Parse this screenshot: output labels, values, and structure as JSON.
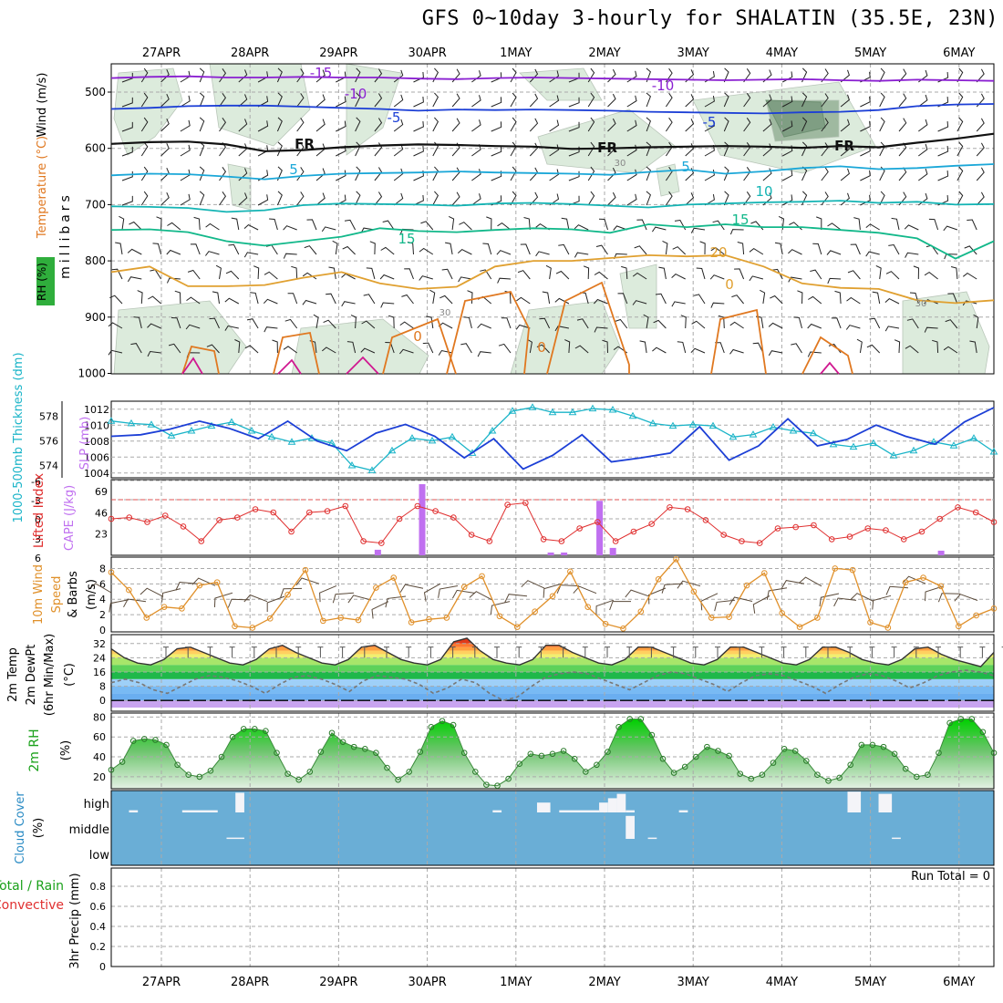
{
  "title": "GFS 0~10day 3-hourly for SHALATIN (35.5E, 23N)",
  "dates": [
    "27APR",
    "28APR",
    "29APR",
    "30APR",
    "1MAY",
    "2MAY",
    "3MAY",
    "4MAY",
    "5MAY",
    "6MAY"
  ],
  "colors": {
    "purple": "#8a1fd1",
    "blue": "#1c3fd6",
    "cyan": "#1aa7d8",
    "teal": "#14b4b4",
    "green": "#12b88a",
    "gold": "#e0a030",
    "orange": "#e07820",
    "magenta": "#d01890",
    "slp": "#1c3fd6",
    "thick": "#1ab4c8",
    "li": "#e03030",
    "cape": "#c070f0",
    "wind10": "#e0902a",
    "cloud": "#6aaed6"
  },
  "chart_data": [
    {
      "type": "line",
      "panel": "upper-air",
      "ylabel_parts": [
        "RH (%)",
        "Temperature (°C)",
        "Wind (m/s)"
      ],
      "ylabel2": "millibars",
      "y_ticks": [
        500,
        600,
        700,
        800,
        900,
        1000
      ],
      "ylim": [
        1000,
        450
      ],
      "contour_labels": [
        {
          "text": "-15",
          "series": "purple"
        },
        {
          "text": "-10",
          "series": "purple"
        },
        {
          "text": "-10",
          "series": "purple"
        },
        {
          "text": "-5",
          "series": "blue"
        },
        {
          "text": "-5",
          "series": "blue"
        },
        {
          "text": "FR",
          "series": "black"
        },
        {
          "text": "FR",
          "series": "black"
        },
        {
          "text": "FR",
          "series": "black"
        },
        {
          "text": "5",
          "series": "cyan"
        },
        {
          "text": "5",
          "series": "cyan"
        },
        {
          "text": "10",
          "series": "teal"
        },
        {
          "text": "15",
          "series": "green"
        },
        {
          "text": "15",
          "series": "green"
        },
        {
          "text": "20",
          "series": "gold"
        },
        {
          "text": "0",
          "series": "gold"
        },
        {
          "text": "0",
          "series": "orange"
        },
        {
          "text": "0",
          "series": "orange"
        },
        {
          "text": "30",
          "series": "gray"
        },
        {
          "text": "30",
          "series": "gray"
        },
        {
          "text": "30",
          "series": "gray"
        }
      ],
      "series": [
        {
          "color": "purple",
          "values": [
            475,
            473,
            472,
            474,
            474,
            473,
            474,
            474,
            476,
            477,
            475,
            474,
            475,
            476,
            477,
            478,
            479,
            478,
            477,
            479,
            480,
            478,
            479,
            480
          ]
        },
        {
          "color": "blue",
          "values": [
            530,
            528,
            525,
            524,
            524,
            526,
            528,
            530,
            533,
            531,
            532,
            531,
            532,
            533,
            535,
            536,
            537,
            538,
            536,
            535,
            532,
            525,
            522,
            521
          ]
        },
        {
          "color": "black",
          "values": [
            592,
            589,
            588,
            593,
            605,
            603,
            598,
            595,
            593,
            594,
            596,
            597,
            601,
            600,
            598,
            597,
            596,
            597,
            599,
            596,
            598,
            590,
            583,
            574
          ]
        },
        {
          "color": "cyan",
          "values": [
            648,
            645,
            646,
            650,
            655,
            649,
            645,
            644,
            643,
            641,
            643,
            644,
            645,
            647,
            642,
            638,
            645,
            641,
            635,
            632,
            637,
            635,
            631,
            628
          ]
        },
        {
          "color": "teal",
          "values": [
            703,
            704,
            706,
            713,
            710,
            701,
            698,
            699,
            700,
            702,
            698,
            697,
            699,
            702,
            705,
            700,
            698,
            696,
            695,
            693,
            697,
            695,
            700,
            699
          ]
        },
        {
          "color": "green",
          "values": [
            745,
            744,
            749,
            765,
            773,
            765,
            757,
            742,
            747,
            749,
            745,
            742,
            744,
            750,
            735,
            740,
            735,
            740,
            740,
            745,
            750,
            760,
            796,
            765
          ]
        },
        {
          "color": "gold",
          "values": [
            820,
            810,
            845,
            845,
            843,
            830,
            820,
            840,
            850,
            846,
            810,
            800,
            800,
            795,
            790,
            792,
            790,
            810,
            840,
            848,
            850,
            870,
            875,
            870
          ]
        }
      ]
    },
    {
      "type": "line",
      "panel": "slp-thickness",
      "ylabel_left": "1000-500mb Thickness (dm)",
      "ylabel_right": "SLP (mb)",
      "left_ticks": [
        574,
        576,
        578
      ],
      "right_ticks": [
        1004,
        1006,
        1008,
        1010,
        1012
      ],
      "series": [
        {
          "name": "SLP",
          "axis": "right",
          "ylim": [
            1003.4,
            1013
          ],
          "values": [
            1008.6,
            1008.8,
            1009.5,
            1010.5,
            1009.6,
            1008.3,
            1010.5,
            1008.0,
            1006.8,
            1009.0,
            1010.1,
            1008.6,
            1005.9,
            1008.3,
            1004.5,
            1006.2,
            1008.8,
            1005.4,
            1005.9,
            1006.5,
            1009.8,
            1005.6,
            1007.4,
            1010.8,
            1007.4,
            1008.2,
            1010.0,
            1008.6,
            1007.6,
            1010.4,
            1012.2
          ]
        },
        {
          "name": "Thickness",
          "axis": "left",
          "ylim": [
            573,
            579.2
          ],
          "values": [
            577.6,
            577.4,
            577.3,
            576.4,
            576.8,
            577.2,
            577.5,
            576.8,
            576.3,
            575.9,
            576.2,
            575.8,
            574.0,
            573.6,
            575.2,
            576.2,
            576.0,
            576.3,
            575.0,
            576.8,
            578.4,
            578.7,
            578.3,
            578.3,
            578.6,
            578.5,
            578.0,
            577.4,
            577.2,
            577.3,
            577.2,
            576.3,
            576.5,
            577.1,
            576.8,
            576.6,
            575.7,
            575.5,
            575.8,
            574.8,
            575.2,
            575.9,
            575.6,
            576.2,
            575.1
          ]
        }
      ]
    },
    {
      "type": "bar",
      "panel": "cape-li",
      "ylabel_left": "Lifted Index",
      "ylabel_right": "CAPE (J/kg)",
      "li_ticks": [
        "-6",
        "-3",
        "0",
        "3",
        "6"
      ],
      "cape_ticks": [
        23,
        46,
        69
      ],
      "li_values": [
        3.0,
        2.8,
        3.5,
        2.5,
        4.2,
        6.5,
        3.2,
        2.8,
        1.5,
        2.0,
        5.0,
        2.0,
        1.8,
        1.0,
        6.5,
        6.8,
        3.0,
        1.0,
        1.8,
        2.8,
        5.5,
        6.5,
        0.8,
        0.5,
        6.2,
        6.5,
        4.5,
        3.5,
        6.5,
        5.0,
        3.8,
        1.2,
        1.5,
        3.2,
        5.5,
        6.5,
        6.8,
        4.5,
        4.3,
        4.0,
        6.2,
        5.8,
        4.5,
        4.8,
        6.2,
        5.0,
        3.0,
        1.2,
        2.0,
        3.5
      ],
      "cape_bars": [
        {
          "x": 3.0,
          "v": 6
        },
        {
          "x": 3.5,
          "v": 77
        },
        {
          "x": 4.95,
          "v": 3
        },
        {
          "x": 5.1,
          "v": 3
        },
        {
          "x": 5.5,
          "v": 59
        },
        {
          "x": 5.65,
          "v": 8
        },
        {
          "x": 9.35,
          "v": 5
        }
      ]
    },
    {
      "type": "line",
      "panel": "wind10m",
      "ylabel": "10m Wind Speed & Barbs (m/s)",
      "y_ticks": [
        0,
        2,
        4,
        6,
        8
      ],
      "ylim": [
        0,
        9
      ],
      "values": [
        7.5,
        5.2,
        1.6,
        3.0,
        2.8,
        5.8,
        6.2,
        0.5,
        0.3,
        1.5,
        4.6,
        7.8,
        1.2,
        1.6,
        1.3,
        5.5,
        6.8,
        1.0,
        1.4,
        1.6,
        5.6,
        7.0,
        1.8,
        0.4,
        2.4,
        4.4,
        7.6,
        3.0,
        0.8,
        0.2,
        2.4,
        6.6,
        9.2,
        5.0,
        1.6,
        1.7,
        5.8,
        7.4,
        2.2,
        0.4,
        1.6,
        8.0,
        7.8,
        1.0,
        0.3,
        6.2,
        6.8,
        5.7,
        0.5,
        1.9,
        2.8
      ]
    },
    {
      "type": "area",
      "panel": "temp2m",
      "ylabel": "2m Temp 2m DewPt (6hr Min/Max) (°C)",
      "y_ticks": [
        0,
        8,
        16,
        24,
        32
      ],
      "ylim": [
        -4,
        37
      ],
      "temp": [
        29,
        24,
        21,
        20,
        23,
        29,
        30,
        27,
        24,
        21,
        20,
        23,
        29,
        31,
        27,
        24,
        21,
        20,
        23,
        30,
        31,
        27,
        23,
        21,
        20,
        23,
        33,
        35,
        28,
        23,
        21,
        20,
        23,
        31,
        31,
        27,
        24,
        21,
        20,
        23,
        30,
        30,
        27,
        24,
        21,
        20,
        23,
        30,
        30,
        27,
        24,
        21,
        20,
        23,
        30,
        30,
        27,
        23,
        21,
        20,
        23,
        29,
        30,
        26,
        23,
        21,
        19,
        27
      ],
      "dewpoint": [
        10,
        12,
        10,
        6,
        4,
        8,
        12,
        14,
        13,
        11,
        8,
        4,
        9,
        13,
        14,
        12,
        9,
        5,
        11,
        14,
        13,
        12,
        9,
        4,
        7,
        12,
        10,
        4,
        0,
        2,
        8,
        13,
        15,
        16,
        15,
        12,
        9,
        6,
        10,
        14,
        16,
        15,
        12,
        9,
        5,
        10,
        14,
        15,
        14,
        11,
        8,
        4,
        9,
        13,
        15,
        14,
        11,
        7,
        10,
        14,
        16,
        17,
        16,
        14
      ]
    },
    {
      "type": "area",
      "panel": "rh2m",
      "ylabel": "2m RH (%)",
      "y_ticks": [
        20,
        40,
        60,
        80
      ],
      "ylim": [
        8,
        84
      ],
      "values": [
        27,
        35,
        56,
        58,
        57,
        52,
        32,
        22,
        20,
        26,
        40,
        60,
        68,
        68,
        66,
        44,
        23,
        17,
        25,
        45,
        64,
        55,
        50,
        48,
        44,
        29,
        17,
        25,
        45,
        70,
        76,
        72,
        44,
        25,
        12,
        11,
        18,
        33,
        43,
        41,
        43,
        46,
        38,
        25,
        32,
        45,
        70,
        78,
        78,
        62,
        38,
        24,
        30,
        40,
        50,
        46,
        41,
        23,
        18,
        22,
        34,
        48,
        46,
        36,
        22,
        16,
        19,
        32,
        52,
        52,
        50,
        43,
        28,
        20,
        22,
        44,
        74,
        78,
        78,
        65,
        44
      ]
    },
    {
      "type": "bar",
      "panel": "cloud",
      "ylabel": "Cloud Cover (%)",
      "levels": [
        "high",
        "middle",
        "low"
      ],
      "high": [
        {
          "x0": 0.2,
          "x1": 0.3,
          "v": 0.1
        },
        {
          "x0": 0.8,
          "x1": 1.2,
          "v": 0.1
        },
        {
          "x0": 1.4,
          "x1": 1.5,
          "v": 0.9
        },
        {
          "x0": 4.3,
          "x1": 4.4,
          "v": 0.1
        },
        {
          "x0": 4.8,
          "x1": 4.95,
          "v": 0.45
        },
        {
          "x0": 5.05,
          "x1": 5.5,
          "v": 0.1
        },
        {
          "x0": 5.5,
          "x1": 5.6,
          "v": 0.45
        },
        {
          "x0": 5.6,
          "x1": 5.7,
          "v": 0.65
        },
        {
          "x0": 5.7,
          "x1": 5.8,
          "v": 0.85
        },
        {
          "x0": 5.8,
          "x1": 5.9,
          "v": 0.1
        },
        {
          "x0": 6.4,
          "x1": 6.5,
          "v": 0.1
        },
        {
          "x0": 8.3,
          "x1": 8.45,
          "v": 0.95
        },
        {
          "x0": 8.65,
          "x1": 8.8,
          "v": 0.85
        }
      ],
      "middle": [
        {
          "x0": 1.3,
          "x1": 1.5,
          "v": 0.05
        },
        {
          "x0": 5.8,
          "x1": 5.9,
          "v": 0.9
        },
        {
          "x0": 6.05,
          "x1": 6.15,
          "v": 0.05
        },
        {
          "x0": 8.8,
          "x1": 8.9,
          "v": 0.05
        }
      ]
    },
    {
      "type": "bar",
      "panel": "precip",
      "ylabel_parts": [
        "Total / Rain",
        "Convective",
        "3hr Precip (mm)"
      ],
      "y_ticks": [
        "0",
        "0.2",
        "0.4",
        "0.6",
        "0.8"
      ],
      "run_total_label": "Run Total = 0",
      "values": []
    }
  ]
}
